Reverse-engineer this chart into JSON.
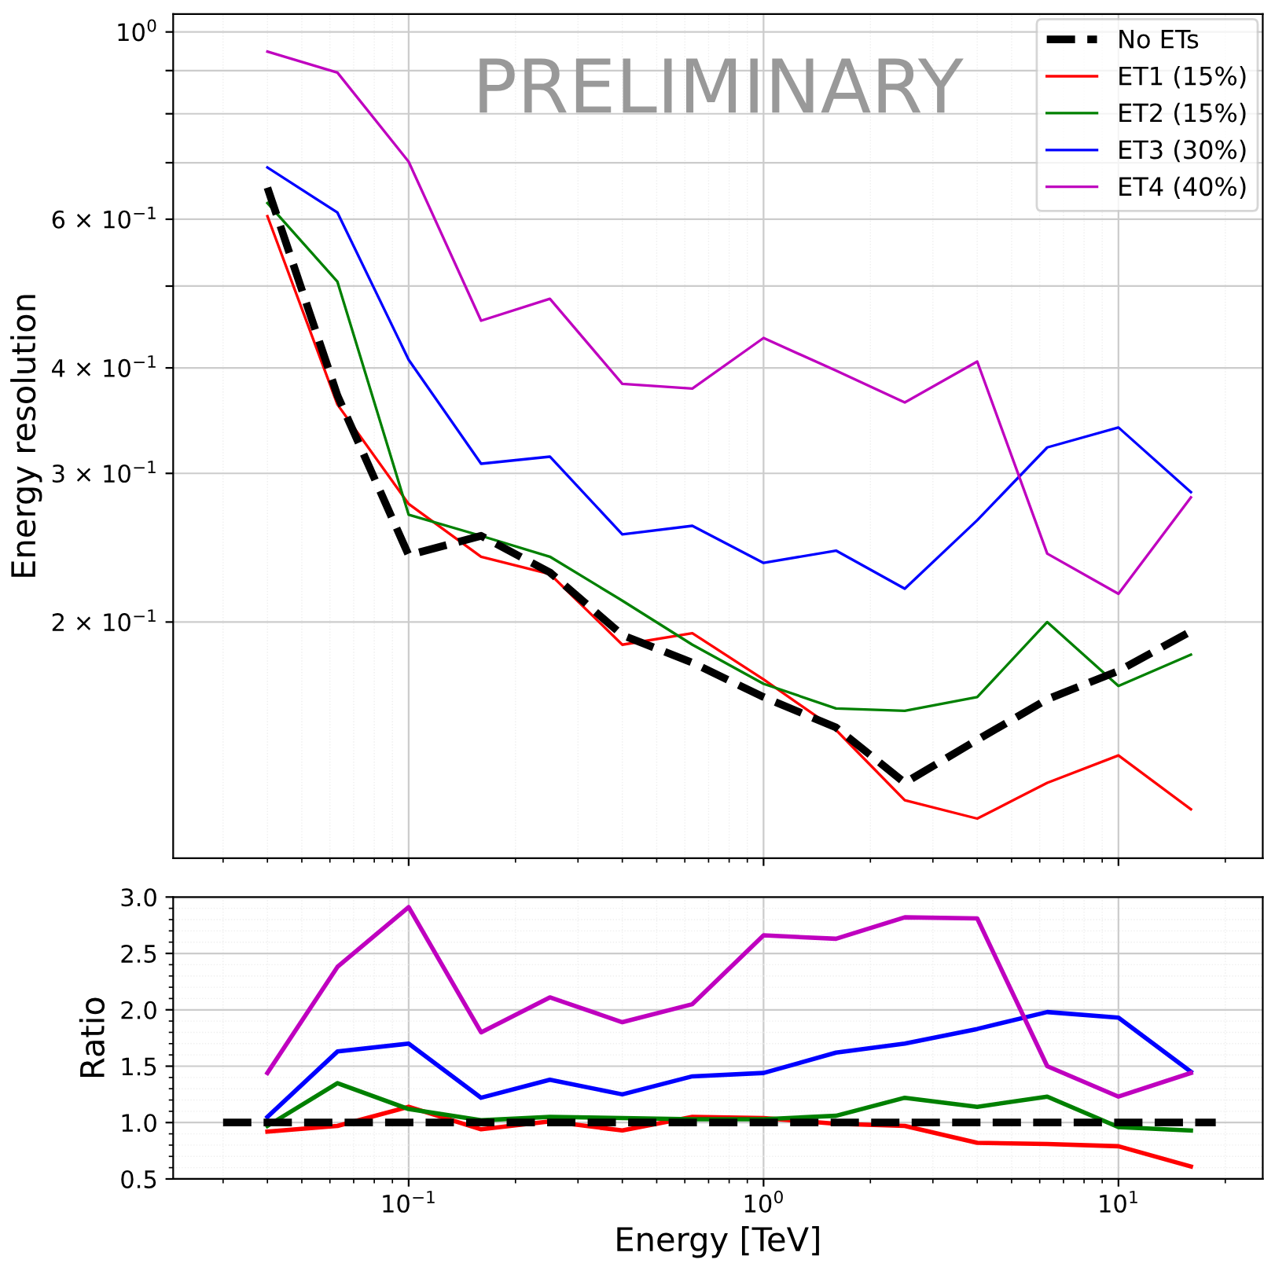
{
  "chart_data": [
    {
      "type": "line",
      "ylabel": "Energy resolution",
      "log": "xy",
      "grid": true,
      "legend": "top right",
      "tick_labels": "y",
      "annotations": [
        "PRELIMINARY"
      ],
      "x": [
        0.04,
        0.063,
        0.1,
        0.16,
        0.25,
        0.4,
        0.63,
        1.0,
        1.6,
        2.5,
        4.0,
        6.3,
        10,
        16
      ],
      "xlim": [
        0.0217,
        25.5
      ],
      "xticks": [
        {
          "value": 0.1,
          "label": null
        },
        {
          "value": 1,
          "label": null
        },
        {
          "value": 10,
          "label": null
        }
      ],
      "ylim": [
        0.105,
        1.05
      ],
      "yticks": [
        {
          "value": 0.2,
          "label": "2 × 10$^{−1}$"
        },
        {
          "value": 0.3,
          "label": "3 × 10$^{−1}$"
        },
        {
          "value": 0.4,
          "label": "4 × 10$^{−1}$"
        },
        {
          "value": 0.5,
          "label": null
        },
        {
          "value": 0.6,
          "label": "6 × 10$^{−1}$"
        },
        {
          "value": 0.7,
          "label": null
        },
        {
          "value": 0.8,
          "label": null
        },
        {
          "value": 0.9,
          "label": null
        },
        {
          "value": 1,
          "label": "10$^{0}$"
        }
      ],
      "series": [
        {
          "name": "No ETs",
          "color": "#000000",
          "line_style": "dashed",
          "values": [
            0.654,
            0.371,
            0.24,
            0.253,
            0.229,
            0.193,
            0.179,
            0.163,
            0.15,
            0.129,
            0.145,
            0.162,
            0.175,
            0.195
          ]
        },
        {
          "name": "ET1 (15%)",
          "color": "#ff0000",
          "values": [
            0.605,
            0.362,
            0.276,
            0.239,
            0.228,
            0.188,
            0.194,
            0.171,
            0.149,
            0.123,
            0.117,
            0.129,
            0.139,
            0.12
          ]
        },
        {
          "name": "ET2 (15%)",
          "color": "#008000",
          "values": [
            0.627,
            0.506,
            0.268,
            0.253,
            0.239,
            0.212,
            0.188,
            0.169,
            0.158,
            0.157,
            0.163,
            0.2,
            0.168,
            0.183
          ]
        },
        {
          "name": "ET3 (30%)",
          "color": "#0000ff",
          "values": [
            0.691,
            0.611,
            0.409,
            0.308,
            0.314,
            0.254,
            0.26,
            0.235,
            0.243,
            0.219,
            0.264,
            0.322,
            0.34,
            0.285
          ]
        },
        {
          "name": "ET4 (40%)",
          "color": "#bf00bf",
          "values": [
            0.948,
            0.895,
            0.702,
            0.455,
            0.483,
            0.383,
            0.378,
            0.434,
            0.397,
            0.364,
            0.407,
            0.241,
            0.216,
            0.281
          ]
        }
      ]
    },
    {
      "type": "line",
      "xlabel": "Energy [TeV]",
      "ylabel": "Ratio",
      "log": "x",
      "grid": true,
      "x": [
        0.04,
        0.063,
        0.1,
        0.16,
        0.25,
        0.4,
        0.63,
        1.0,
        1.6,
        2.5,
        4.0,
        6.3,
        10,
        16
      ],
      "xlim": [
        0.0217,
        25.5
      ],
      "xticks": [
        {
          "value": 0.1,
          "label": "10$^{−1}$"
        },
        {
          "value": 1,
          "label": "10$^{0}$"
        },
        {
          "value": 10,
          "label": "10$^{1}$"
        }
      ],
      "ylim": [
        0.5,
        3.0
      ],
      "yticks": [
        {
          "value": 0.5,
          "label": "0.5"
        },
        {
          "value": 1.0,
          "label": "1.0"
        },
        {
          "value": 1.5,
          "label": "1.5"
        },
        {
          "value": 2.0,
          "label": "2.0"
        },
        {
          "value": 2.5,
          "label": "2.5"
        },
        {
          "value": 3.0,
          "label": "3.0"
        }
      ],
      "series": [
        {
          "color": "#000000",
          "line_style": "dashed",
          "x": [
            0.03,
            18.8
          ],
          "values": [
            1.0,
            1.0
          ]
        },
        {
          "color": "#ff0000",
          "values": [
            0.92,
            0.97,
            1.14,
            0.94,
            1.01,
            0.93,
            1.05,
            1.04,
            0.99,
            0.97,
            0.82,
            0.81,
            0.79,
            0.61
          ]
        },
        {
          "color": "#008000",
          "values": [
            0.97,
            1.35,
            1.12,
            1.02,
            1.05,
            1.04,
            1.03,
            1.03,
            1.06,
            1.22,
            1.14,
            1.23,
            0.96,
            0.93
          ]
        },
        {
          "color": "#0000ff",
          "values": [
            1.05,
            1.63,
            1.7,
            1.22,
            1.38,
            1.25,
            1.41,
            1.44,
            1.62,
            1.7,
            1.83,
            1.98,
            1.93,
            1.45
          ]
        },
        {
          "color": "#bf00bf",
          "values": [
            1.44,
            2.38,
            2.91,
            1.8,
            2.11,
            1.89,
            2.05,
            2.66,
            2.63,
            2.82,
            2.81,
            1.5,
            1.23,
            1.44
          ]
        }
      ]
    }
  ]
}
